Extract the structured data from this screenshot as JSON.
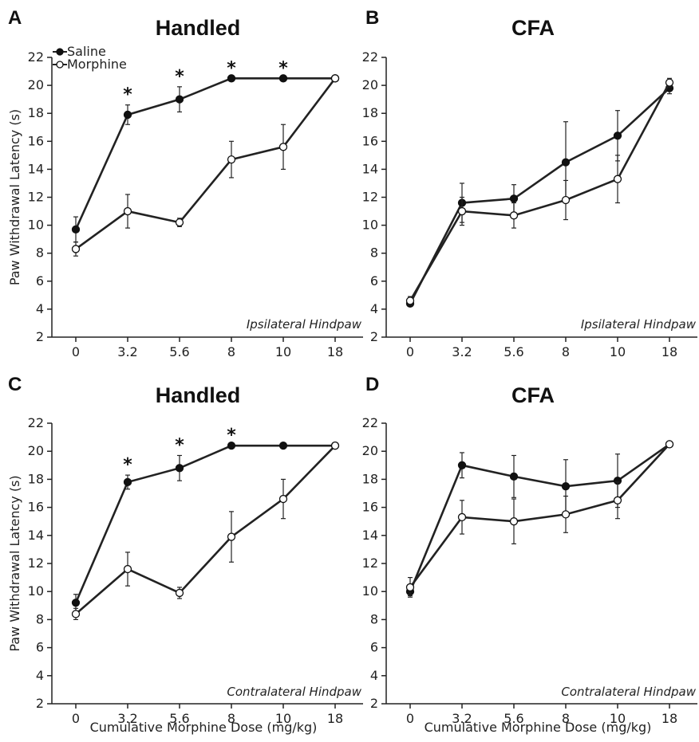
{
  "legend": {
    "items": [
      {
        "name": "Saline",
        "marker": "filled"
      },
      {
        "name": "Morphine",
        "marker": "open"
      }
    ]
  },
  "colors": {
    "line": "#222222",
    "filled_marker": "#111111",
    "open_marker": "#ffffff"
  },
  "chart_data": [
    {
      "type": "line",
      "panel": "A",
      "title": "Handled",
      "ylabel": "Paw Withdrawal Latency (s)",
      "xlabel": "",
      "note": "Ipsilateral Hindpaw",
      "categories": [
        "0",
        "3.2",
        "5.6",
        "8",
        "10",
        "18"
      ],
      "ylim": [
        2,
        22
      ],
      "yticks": [
        2,
        4,
        6,
        8,
        10,
        12,
        14,
        16,
        18,
        20,
        22
      ],
      "series": [
        {
          "name": "Saline",
          "marker": "filled",
          "values": [
            9.7,
            17.9,
            19.0,
            20.5,
            20.5,
            20.5
          ],
          "errors": [
            0.9,
            0.7,
            0.9,
            0,
            0,
            0
          ]
        },
        {
          "name": "Morphine",
          "marker": "open",
          "values": [
            8.3,
            11.0,
            10.2,
            14.7,
            15.6,
            20.5
          ],
          "errors": [
            0.5,
            1.2,
            0.3,
            1.3,
            1.6,
            0
          ]
        }
      ],
      "significance": [
        "",
        "*",
        "*",
        "*",
        "*",
        ""
      ]
    },
    {
      "type": "line",
      "panel": "B",
      "title": "CFA",
      "ylabel": "",
      "xlabel": "",
      "note": "Ipsilateral Hindpaw",
      "categories": [
        "0",
        "3.2",
        "5.6",
        "8",
        "10",
        "18"
      ],
      "ylim": [
        2,
        22
      ],
      "yticks": [
        2,
        4,
        6,
        8,
        10,
        12,
        14,
        16,
        18,
        20,
        22
      ],
      "series": [
        {
          "name": "Saline",
          "marker": "filled",
          "values": [
            4.4,
            11.6,
            11.9,
            14.5,
            16.4,
            19.8
          ],
          "errors": [
            0.2,
            1.4,
            1.0,
            2.9,
            1.8,
            0.4
          ]
        },
        {
          "name": "Morphine",
          "marker": "open",
          "values": [
            4.6,
            11.0,
            10.7,
            11.8,
            13.3,
            20.2
          ],
          "errors": [
            0.3,
            1.0,
            0.9,
            1.4,
            1.7,
            0.3
          ]
        }
      ],
      "significance": [
        "",
        "",
        "",
        "",
        "",
        ""
      ]
    },
    {
      "type": "line",
      "panel": "C",
      "title": "Handled",
      "ylabel": "Paw Withdrawal Latency (s)",
      "xlabel": "Cumulative Morphine Dose (mg/kg)",
      "note": "Contralateral Hindpaw",
      "categories": [
        "0",
        "3.2",
        "5.6",
        "8",
        "10",
        "18"
      ],
      "ylim": [
        2,
        22
      ],
      "yticks": [
        2,
        4,
        6,
        8,
        10,
        12,
        14,
        16,
        18,
        20,
        22
      ],
      "series": [
        {
          "name": "Saline",
          "marker": "filled",
          "values": [
            9.2,
            17.8,
            18.8,
            20.4,
            20.4,
            20.4
          ],
          "errors": [
            0.6,
            0.5,
            0.9,
            0,
            0,
            0
          ]
        },
        {
          "name": "Morphine",
          "marker": "open",
          "values": [
            8.4,
            11.6,
            9.9,
            13.9,
            16.6,
            20.4
          ],
          "errors": [
            0.4,
            1.2,
            0.4,
            1.8,
            1.4,
            0
          ]
        }
      ],
      "significance": [
        "",
        "*",
        "*",
        "*",
        "",
        ""
      ]
    },
    {
      "type": "line",
      "panel": "D",
      "title": "CFA",
      "ylabel": "",
      "xlabel": "Cumulative Morphine Dose (mg/kg)",
      "note": "Contralateral Hindpaw",
      "categories": [
        "0",
        "3.2",
        "5.6",
        "8",
        "10",
        "18"
      ],
      "ylim": [
        2,
        22
      ],
      "yticks": [
        2,
        4,
        6,
        8,
        10,
        12,
        14,
        16,
        18,
        20,
        22
      ],
      "series": [
        {
          "name": "Saline",
          "marker": "filled",
          "values": [
            10.0,
            19.0,
            18.2,
            17.5,
            17.9,
            20.5
          ],
          "errors": [
            0.3,
            0.9,
            1.5,
            1.9,
            1.9,
            0
          ]
        },
        {
          "name": "Morphine",
          "marker": "open",
          "values": [
            10.3,
            15.3,
            15.0,
            15.5,
            16.5,
            20.5
          ],
          "errors": [
            0.7,
            1.2,
            1.6,
            1.3,
            1.3,
            0
          ]
        }
      ],
      "significance": [
        "",
        "",
        "",
        "",
        "",
        ""
      ]
    }
  ]
}
